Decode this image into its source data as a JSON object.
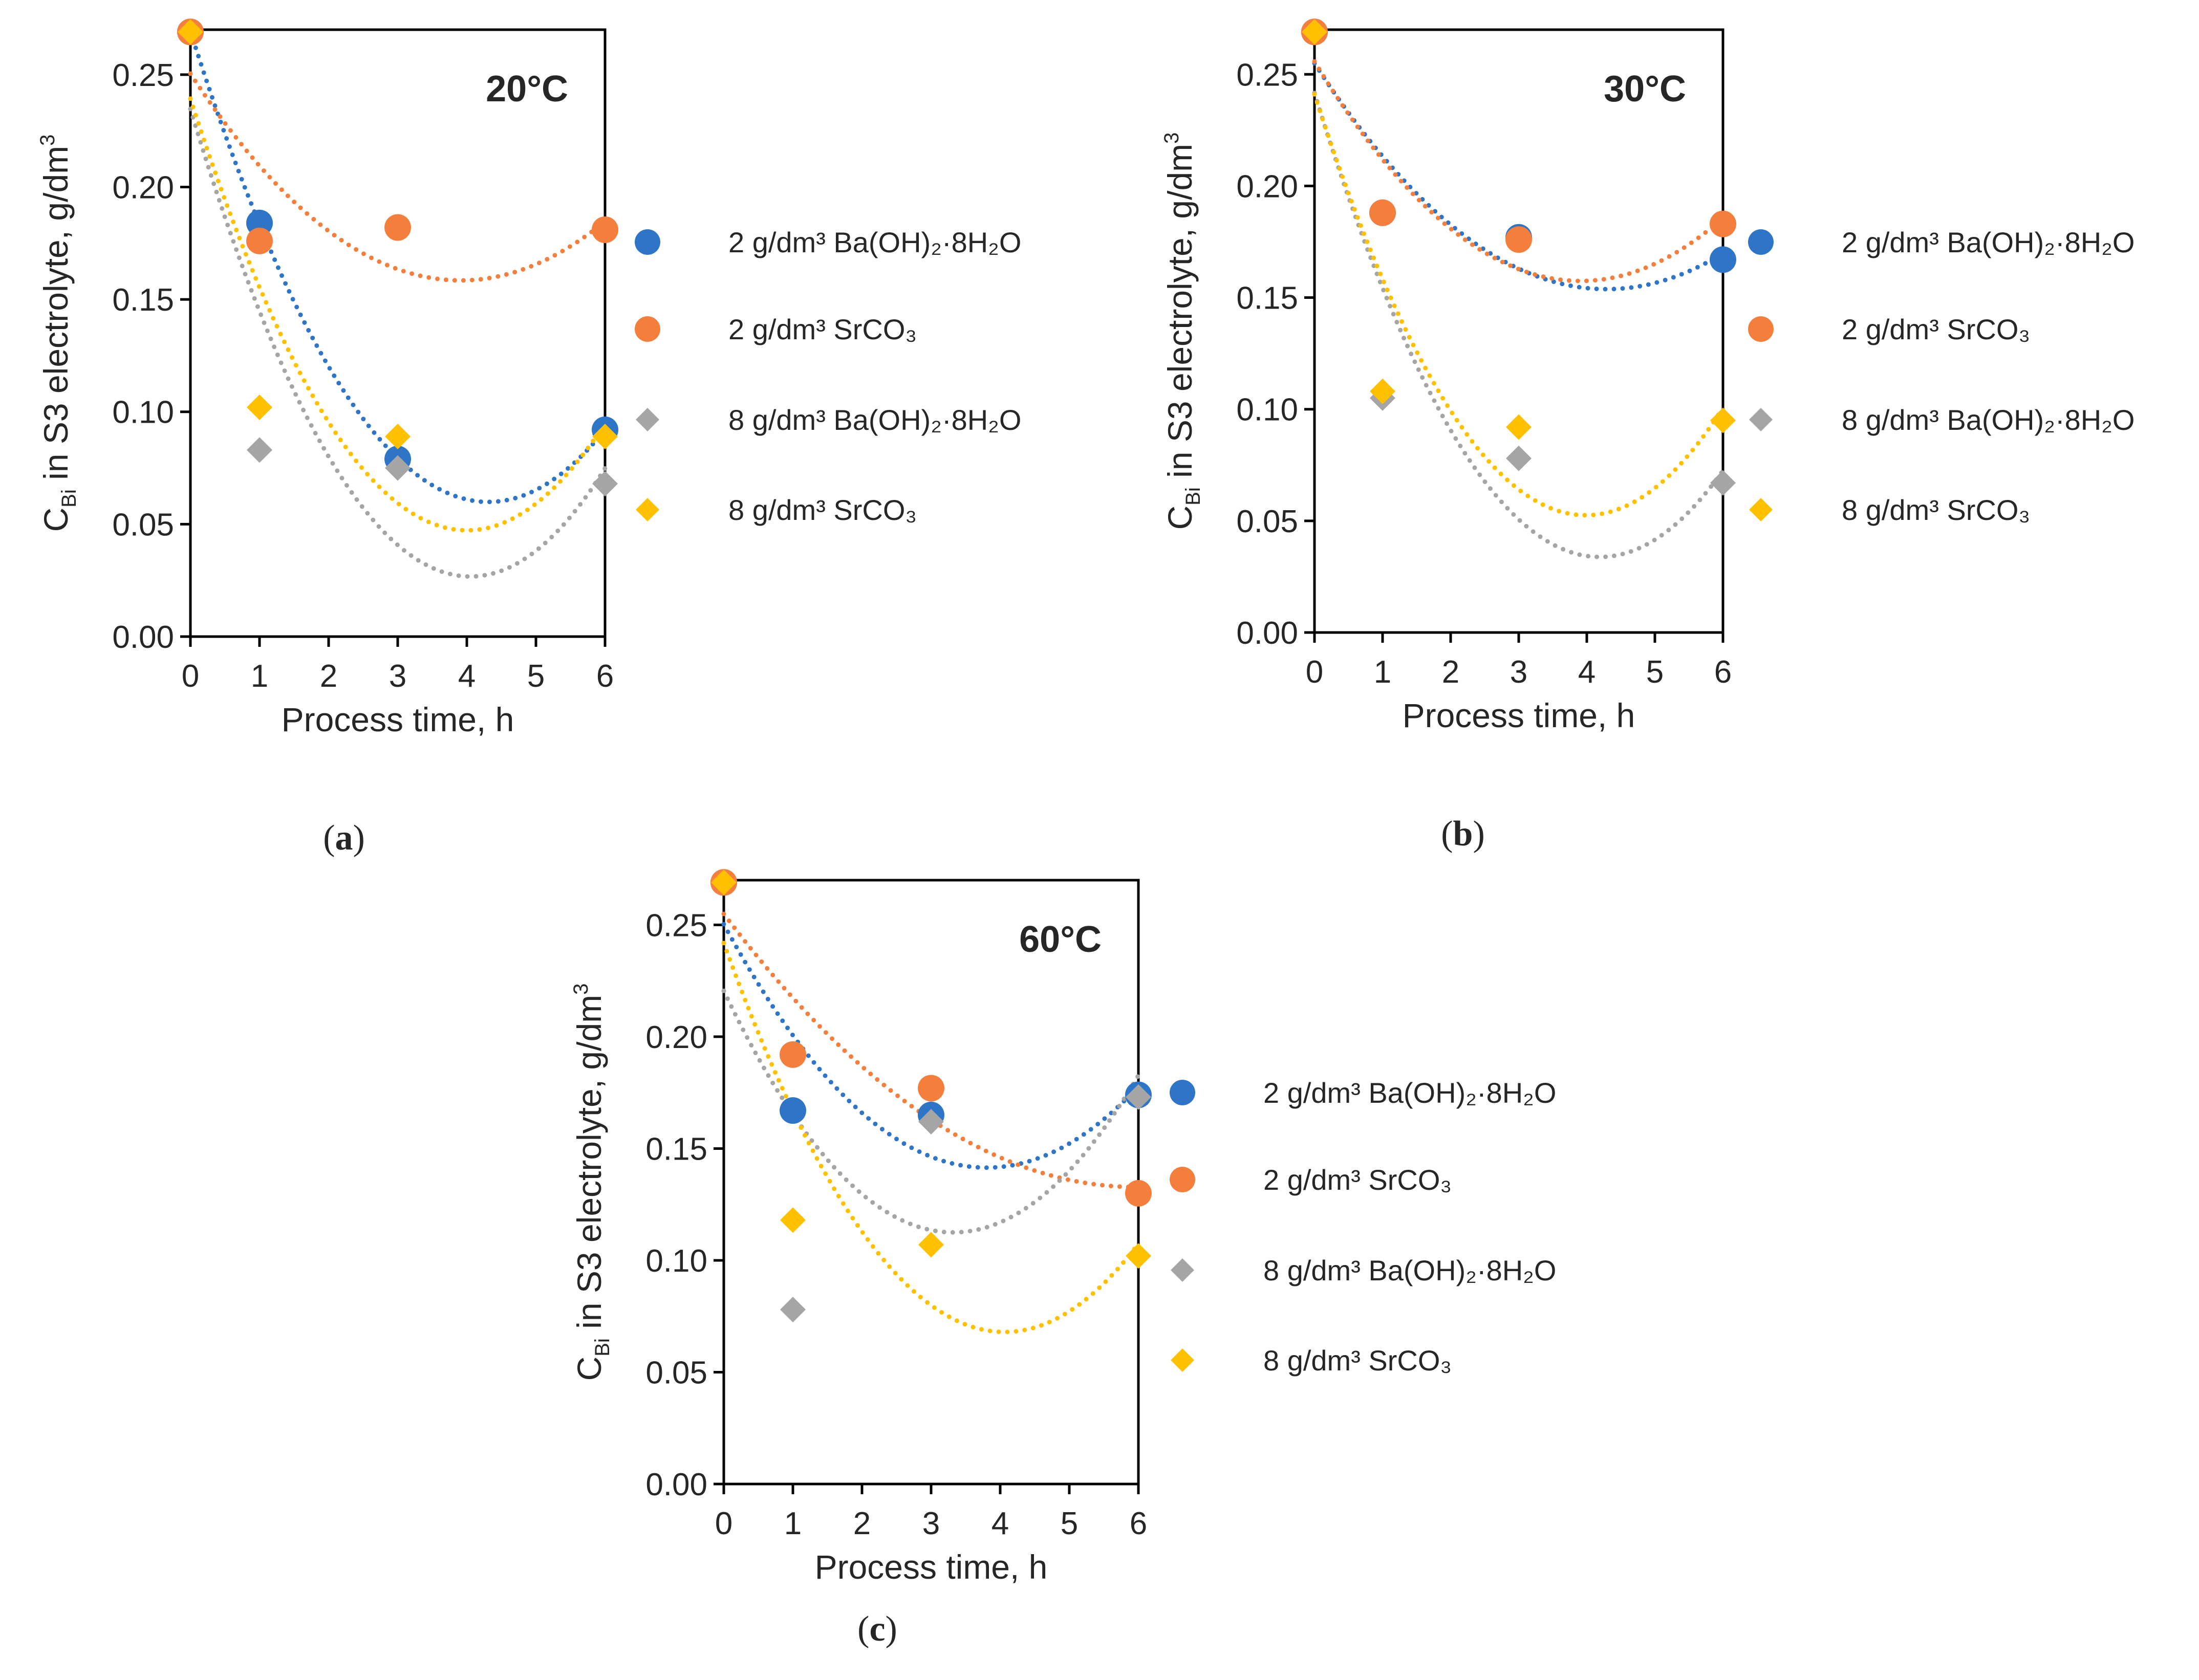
{
  "figure": {
    "series_labels": [
      "2 g/dm³ Ba(OH)₂·8H₂O",
      "2 g/dm³ SrCO₃",
      "8 g/dm³ Ba(OH)₂·8H₂O",
      "8 g/dm³ SrCO₃"
    ]
  },
  "chart_data": [
    {
      "type": "scatter",
      "panel_label": "a",
      "title": "20°C",
      "xlabel": "Process time, h",
      "ylabel": "C_Bi in S3 electrolyte, g/dm³",
      "ylabel_parts": [
        "C",
        "Bi",
        " in S3 electrolyte, g/dm",
        "3"
      ],
      "xlim": [
        0,
        6
      ],
      "ylim": [
        0,
        0.27
      ],
      "xticks": [
        0,
        1,
        2,
        3,
        4,
        5,
        6
      ],
      "yticks": [
        0.0,
        0.05,
        0.1,
        0.15,
        0.2,
        0.25
      ],
      "ytick_labels": [
        "0.00",
        "0.05",
        "0.10",
        "0.15",
        "0.20",
        "0.25"
      ],
      "grid": false,
      "legend_position": "right",
      "trendline": "dotted quadratic fit per series",
      "series": [
        {
          "name": "2 g/dm³ Ba(OH)₂·8H₂O",
          "marker": "circle",
          "color": "#2E75C8",
          "x": [
            0,
            1,
            3,
            6
          ],
          "y": [
            0.269,
            0.184,
            0.079,
            0.092
          ]
        },
        {
          "name": "2 g/dm³ SrCO₃",
          "marker": "circle",
          "color": "#F47F3C",
          "x": [
            0,
            1,
            3,
            6
          ],
          "y": [
            0.269,
            0.176,
            0.182,
            0.181
          ]
        },
        {
          "name": "8 g/dm³ Ba(OH)₂·8H₂O",
          "marker": "diamond",
          "color": "#A5A5A5",
          "x": [
            0,
            1,
            3,
            6
          ],
          "y": [
            0.269,
            0.083,
            0.075,
            0.068
          ]
        },
        {
          "name": "8 g/dm³ SrCO₃",
          "marker": "diamond",
          "color": "#FFC000",
          "x": [
            0,
            1,
            3,
            6
          ],
          "y": [
            0.269,
            0.102,
            0.089,
            0.089
          ]
        }
      ]
    },
    {
      "type": "scatter",
      "panel_label": "b",
      "title": "30°C",
      "xlabel": "Process time, h",
      "ylabel": "C_Bi in S3 electrolyte, g/dm³",
      "ylabel_parts": [
        "C",
        "Bi",
        " in S3 electrolyte, g/dm",
        "3"
      ],
      "xlim": [
        0,
        6
      ],
      "ylim": [
        0,
        0.27
      ],
      "xticks": [
        0,
        1,
        2,
        3,
        4,
        5,
        6
      ],
      "yticks": [
        0.0,
        0.05,
        0.1,
        0.15,
        0.2,
        0.25
      ],
      "ytick_labels": [
        "0.00",
        "0.05",
        "0.10",
        "0.15",
        "0.20",
        "0.25"
      ],
      "grid": false,
      "legend_position": "right",
      "trendline": "dotted quadratic fit per series",
      "series": [
        {
          "name": "2 g/dm³ Ba(OH)₂·8H₂O",
          "marker": "circle",
          "color": "#2E75C8",
          "x": [
            0,
            1,
            3,
            6
          ],
          "y": [
            0.269,
            0.188,
            0.177,
            0.167
          ]
        },
        {
          "name": "2 g/dm³ SrCO₃",
          "marker": "circle",
          "color": "#F47F3C",
          "x": [
            0,
            1,
            3,
            6
          ],
          "y": [
            0.269,
            0.188,
            0.176,
            0.183
          ]
        },
        {
          "name": "8 g/dm³ Ba(OH)₂·8H₂O",
          "marker": "diamond",
          "color": "#A5A5A5",
          "x": [
            0,
            1,
            3,
            6
          ],
          "y": [
            0.269,
            0.105,
            0.078,
            0.067
          ]
        },
        {
          "name": "8 g/dm³ SrCO₃",
          "marker": "diamond",
          "color": "#FFC000",
          "x": [
            0,
            1,
            3,
            6
          ],
          "y": [
            0.269,
            0.108,
            0.092,
            0.095
          ]
        }
      ]
    },
    {
      "type": "scatter",
      "panel_label": "c",
      "title": "60°C",
      "xlabel": "Process time, h",
      "ylabel": "C_Bi in S3 electrolyte, g/dm³",
      "ylabel_parts": [
        "C",
        "Bi",
        " in S3 electrolyte, g/dm",
        "3"
      ],
      "xlim": [
        0,
        6
      ],
      "ylim": [
        0,
        0.27
      ],
      "xticks": [
        0,
        1,
        2,
        3,
        4,
        5,
        6
      ],
      "yticks": [
        0.0,
        0.05,
        0.1,
        0.15,
        0.2,
        0.25
      ],
      "ytick_labels": [
        "0.00",
        "0.05",
        "0.10",
        "0.15",
        "0.20",
        "0.25"
      ],
      "grid": false,
      "legend_position": "right",
      "trendline": "dotted quadratic fit per series",
      "series": [
        {
          "name": "2 g/dm³ Ba(OH)₂·8H₂O",
          "marker": "circle",
          "color": "#2E75C8",
          "x": [
            0,
            1,
            3,
            6
          ],
          "y": [
            0.269,
            0.167,
            0.165,
            0.174
          ]
        },
        {
          "name": "2 g/dm³ SrCO₃",
          "marker": "circle",
          "color": "#F47F3C",
          "x": [
            0,
            1,
            3,
            6
          ],
          "y": [
            0.269,
            0.192,
            0.177,
            0.13
          ]
        },
        {
          "name": "8 g/dm³ Ba(OH)₂·8H₂O",
          "marker": "diamond",
          "color": "#A5A5A5",
          "x": [
            0,
            1,
            3,
            6
          ],
          "y": [
            0.269,
            0.078,
            0.162,
            0.173
          ]
        },
        {
          "name": "8 g/dm³ SrCO₃",
          "marker": "diamond",
          "color": "#FFC000",
          "x": [
            0,
            1,
            3,
            6
          ],
          "y": [
            0.269,
            0.118,
            0.107,
            0.102
          ]
        }
      ]
    }
  ]
}
